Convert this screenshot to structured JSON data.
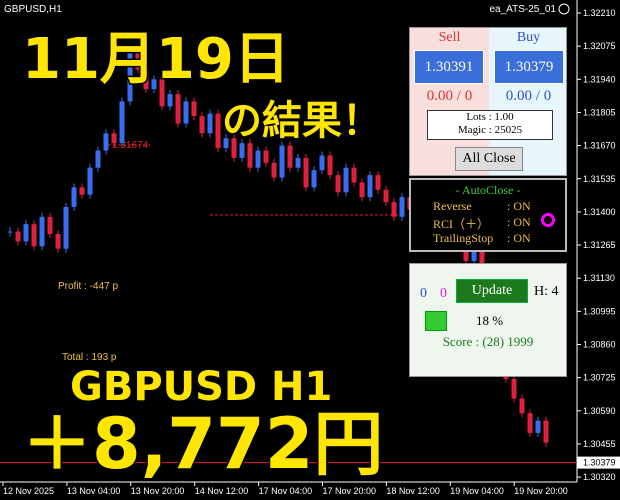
{
  "header": {
    "symbol": "GBPUSD,H1",
    "ea": "ea_ATS-25_01"
  },
  "overlay": {
    "date": "11月19日",
    "result": "の結果！",
    "pair": "GBPUSD H1",
    "amount": "＋8,772円"
  },
  "chart": {
    "ylim": [
      1.303,
      1.32263
    ],
    "price_ticks": [
      {
        "value": 1.3221,
        "label": "1.32210"
      },
      {
        "value": 1.32075,
        "label": "1.32075"
      },
      {
        "value": 1.3194,
        "label": "1.31940"
      },
      {
        "value": 1.31805,
        "label": "1.31805"
      },
      {
        "value": 1.3167,
        "label": "1.31670"
      },
      {
        "value": 1.31535,
        "label": "1.31535"
      },
      {
        "value": 1.314,
        "label": "1.31400"
      },
      {
        "value": 1.31265,
        "label": "1.31265"
      },
      {
        "value": 1.3113,
        "label": "1.31130"
      },
      {
        "value": 1.30995,
        "label": "1.30995"
      },
      {
        "value": 1.3086,
        "label": "1.30860"
      },
      {
        "value": 1.30725,
        "label": "1.30725"
      },
      {
        "value": 1.3059,
        "label": "1.30590"
      },
      {
        "value": 1.30455,
        "label": "1.30455"
      },
      {
        "value": 1.3032,
        "label": "1.30320"
      }
    ],
    "current_price": {
      "value": 1.30379,
      "label": "1.30379"
    },
    "time_labels": [
      "12 Nov 2025",
      "13 Nov 04:00",
      "13 Nov 20:00",
      "14 Nov 12:00",
      "17 Nov 04:00",
      "17 Nov 20:00",
      "18 Nov 12:00",
      "19 Nov 04:00",
      "19 Nov 20:00"
    ],
    "closes": [
      1.3132,
      1.3128,
      1.3135,
      1.3126,
      1.3138,
      1.3131,
      1.3125,
      1.3142,
      1.315,
      1.3147,
      1.3158,
      1.3165,
      1.3172,
      1.3168,
      1.3185,
      1.3205,
      1.3198,
      1.319,
      1.3194,
      1.3183,
      1.3188,
      1.3176,
      1.3185,
      1.3179,
      1.3172,
      1.318,
      1.3166,
      1.317,
      1.3162,
      1.3168,
      1.3158,
      1.3165,
      1.316,
      1.3154,
      1.3167,
      1.3158,
      1.3162,
      1.315,
      1.3157,
      1.3163,
      1.3155,
      1.3148,
      1.3158,
      1.3152,
      1.3146,
      1.3155,
      1.3149,
      1.3144,
      1.3138,
      1.3146,
      1.3141,
      1.3135,
      1.3139,
      1.313,
      1.3133,
      1.3126,
      1.3128,
      1.312,
      1.3124,
      1.3112,
      1.31,
      1.3085,
      1.3072,
      1.3064,
      1.3058,
      1.305,
      1.3055,
      1.3046
    ],
    "marker_label": "1.31674",
    "profit": "Profit : -447 p",
    "total": "Total : 193 p"
  },
  "trade_panel": {
    "sell": "Sell",
    "buy": "Buy",
    "sell_price": "1.30391",
    "buy_price": "1.30379",
    "sell_pl": "0.00 / 0",
    "buy_pl": "0.00 / 0",
    "lots": "Lots  : 1.00",
    "magic": "Magic : 25025",
    "close_button": "All Close"
  },
  "autoclose_panel": {
    "title": "- AutoClose -",
    "rows": [
      [
        "Reverse",
        ": ON"
      ],
      [
        "RCI（＋）",
        ": ON"
      ],
      [
        "TrailingStop",
        ": ON"
      ]
    ]
  },
  "status_panel": {
    "count_blue": "0",
    "count_magenta": "0",
    "update_button": "Update",
    "hours": "H: 4",
    "percent": "18 %",
    "score": "Score : (28) 1999"
  }
}
